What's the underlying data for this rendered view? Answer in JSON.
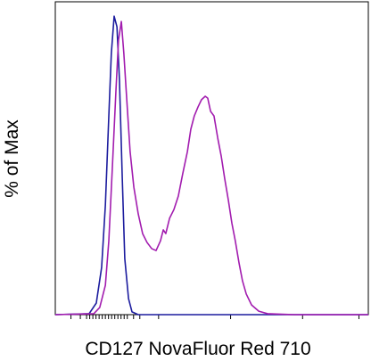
{
  "chart_data": {
    "type": "line",
    "xlabel": "CD127 NovaFluor Red 710",
    "ylabel": "% of Max",
    "xlim": [
      0,
      100
    ],
    "ylim": [
      0,
      100
    ],
    "xticks": [
      5,
      8,
      10,
      11,
      12,
      13,
      14,
      15,
      16,
      17,
      18,
      19,
      20,
      21,
      22,
      23,
      25,
      27,
      33,
      56,
      79,
      97
    ],
    "series": [
      {
        "color": "#1c1c9e",
        "x": [
          0,
          10.8,
          13.1,
          14.8,
          16.0,
          17.1,
          17.9,
          18.8,
          19.7,
          20.5,
          21.4,
          22.2,
          23.4,
          24.5,
          26.5,
          100
        ],
        "values": [
          0,
          0.3,
          3.7,
          15.1,
          35.0,
          63.5,
          83.5,
          95.4,
          92.0,
          74.9,
          43.6,
          17.9,
          5.1,
          0.9,
          0,
          0
        ]
      },
      {
        "color": "#a21caf",
        "x": [
          0,
          12.3,
          14.2,
          16.0,
          17.1,
          18.2,
          19.4,
          20.2,
          21.1,
          21.9,
          22.8,
          23.9,
          25.1,
          26.5,
          27.9,
          29.3,
          30.8,
          32.2,
          33.6,
          34.5,
          35.3,
          36.5,
          37.9,
          39.3,
          40.7,
          42.2,
          43.3,
          44.4,
          45.6,
          46.7,
          47.9,
          48.7,
          49.6,
          50.7,
          51.9,
          53.0,
          54.1,
          55.3,
          56.4,
          57.5,
          58.7,
          59.8,
          61.0,
          62.7,
          65.0,
          67.8,
          76.4,
          100
        ],
        "values": [
          0,
          0.3,
          2.3,
          9.4,
          23.6,
          46.4,
          72.1,
          87.8,
          93.7,
          83.5,
          69.2,
          52.1,
          40.7,
          32.2,
          25.9,
          23.1,
          21.1,
          20.5,
          23.6,
          27.1,
          25.9,
          30.8,
          33.6,
          37.9,
          45.0,
          52.1,
          59.3,
          63.5,
          66.4,
          68.7,
          69.8,
          69.2,
          65.0,
          63.5,
          56.4,
          50.7,
          43.6,
          36.5,
          29.3,
          23.6,
          16.5,
          10.8,
          6.6,
          3.1,
          1.1,
          0.3,
          0,
          0
        ]
      }
    ]
  }
}
